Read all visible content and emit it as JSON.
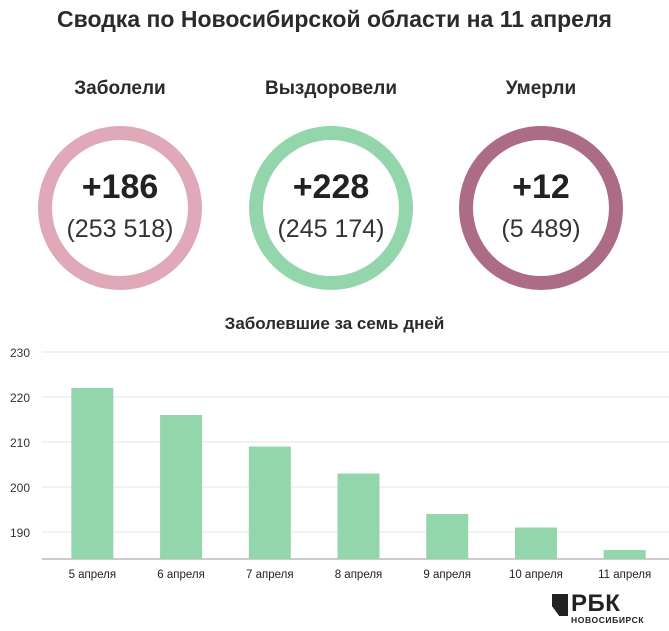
{
  "header": {
    "title": "Сводка по Новосибирской области на 11 апреля"
  },
  "stats": [
    {
      "label": "Заболели",
      "delta": "+186",
      "total": "(253 518)",
      "color": "#dfa9b9"
    },
    {
      "label": "Выздоровели",
      "delta": "+228",
      "total": "(245 174)",
      "color": "#93d6ab"
    },
    {
      "label": "Умерли",
      "delta": "+12",
      "total": "(5 489)",
      "color": "#ac6c85"
    }
  ],
  "chart_data": {
    "type": "bar",
    "title": "Заболевшие за семь дней",
    "categories": [
      "5 апреля",
      "6 апреля",
      "7 апреля",
      "8 апреля",
      "9 апреля",
      "10 апреля",
      "11 апреля"
    ],
    "values": [
      222,
      216,
      209,
      203,
      194,
      191,
      186
    ],
    "yticks": [
      190,
      200,
      210,
      220,
      230
    ],
    "ylim": [
      184,
      230
    ],
    "xlabel": "",
    "ylabel": "",
    "grid": true,
    "bar_color": "#93d6ab"
  },
  "brand": {
    "logo": "РБК",
    "region": "НОВОСИБИРСК"
  }
}
